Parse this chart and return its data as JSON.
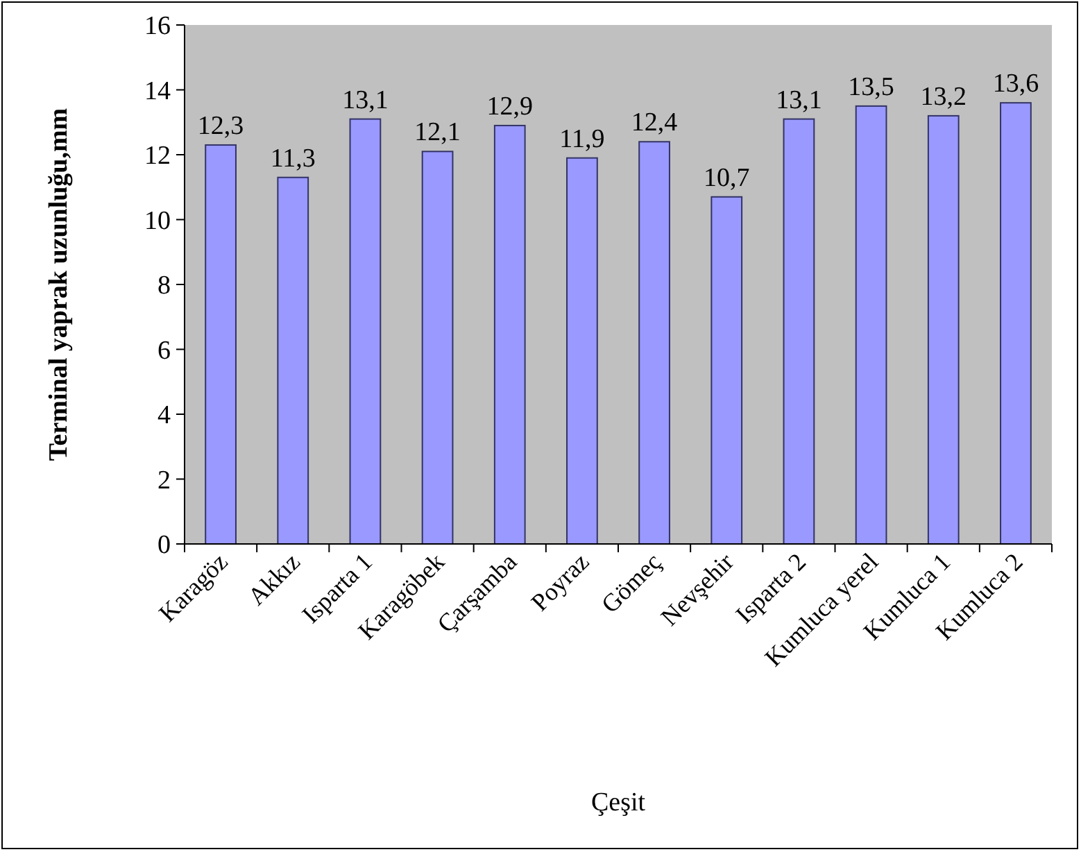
{
  "chart_data": {
    "type": "bar",
    "ylabel": "Terminal yaprak uzunluğu,mm",
    "xlabel": "Çeşit",
    "categories": [
      "Karagöz",
      "Akkız",
      "Isparta 1",
      "Karagöbek",
      "Çarşamba",
      "Poyraz",
      "Gömeç",
      "Nevşehir",
      "Isparta 2",
      "Kumluca yerel",
      "Kumluca 1",
      "Kumluca 2"
    ],
    "values": [
      12.3,
      11.3,
      13.1,
      12.1,
      12.9,
      11.9,
      12.4,
      10.7,
      13.1,
      13.5,
      13.2,
      13.6
    ],
    "value_labels": [
      "12,3",
      "11,3",
      "13,1",
      "12,1",
      "12,9",
      "11,9",
      "12,4",
      "10,7",
      "13,1",
      "13,5",
      "13,2",
      "13,6"
    ],
    "color": "#9999ff",
    "ylim": [
      0,
      16
    ],
    "yticks": [
      0,
      2,
      4,
      6,
      8,
      10,
      12,
      14,
      16
    ],
    "grid": false
  }
}
